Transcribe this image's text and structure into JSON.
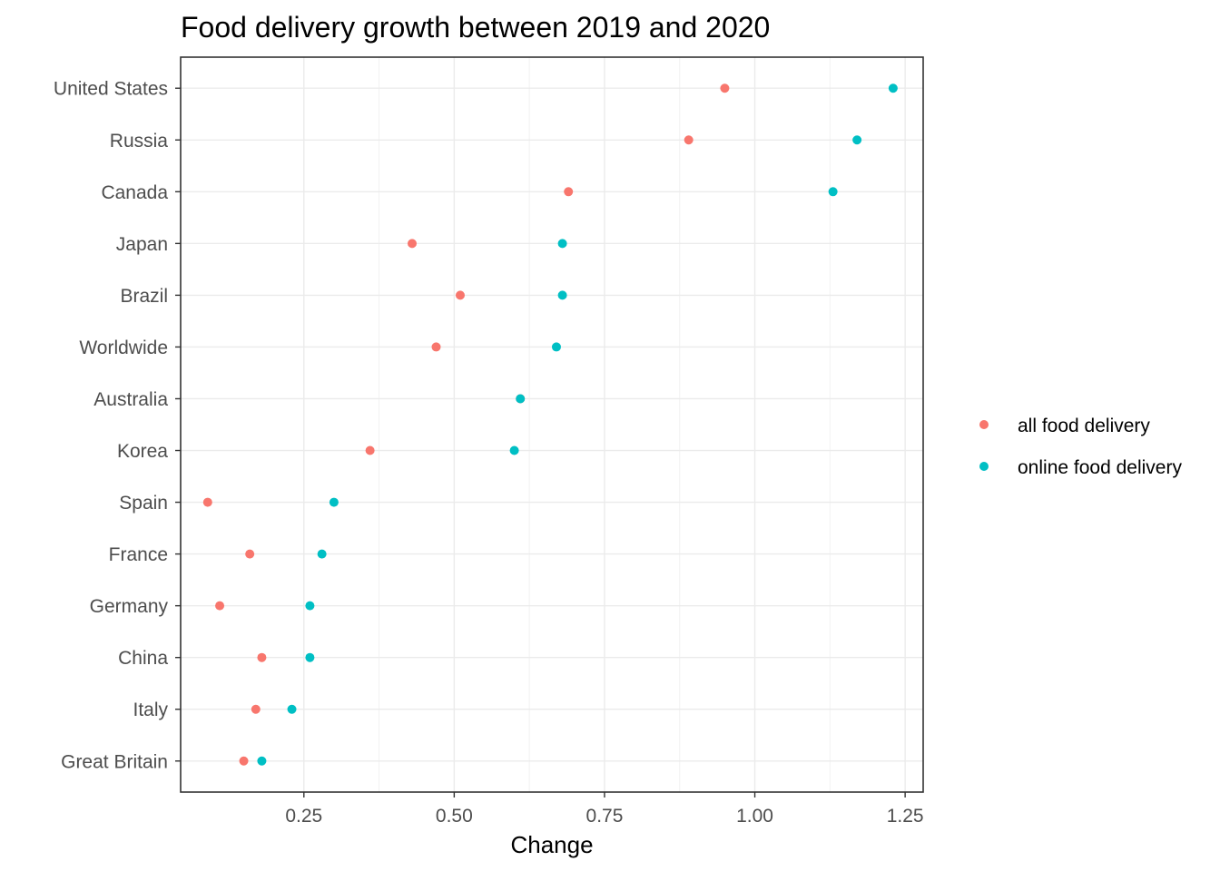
{
  "chart_data": {
    "type": "scatter",
    "title": "Food delivery growth between 2019 and 2020",
    "xlabel": "Change",
    "ylabel": "",
    "xlim": [
      0.045,
      1.28
    ],
    "xticks": [
      0.25,
      0.5,
      0.75,
      1.0,
      1.25
    ],
    "xtick_labels": [
      "0.25",
      "0.50",
      "0.75",
      "1.00",
      "1.25"
    ],
    "categories": [
      "United States",
      "Russia",
      "Canada",
      "Japan",
      "Brazil",
      "Worldwide",
      "Australia",
      "Korea",
      "Spain",
      "France",
      "Germany",
      "China",
      "Italy",
      "Great Britain"
    ],
    "series": [
      {
        "name": "all food delivery",
        "color": "#F8766D",
        "values": [
          0.95,
          0.89,
          0.69,
          0.43,
          0.51,
          0.47,
          0.61,
          0.36,
          0.09,
          0.16,
          0.11,
          0.18,
          0.17,
          0.15
        ]
      },
      {
        "name": "online food delivery",
        "color": "#00BFC4",
        "values": [
          1.23,
          1.17,
          1.13,
          0.68,
          0.68,
          0.67,
          0.61,
          0.6,
          0.3,
          0.28,
          0.26,
          0.26,
          0.23,
          0.18
        ]
      }
    ],
    "grid": true,
    "legend_position": "right"
  }
}
